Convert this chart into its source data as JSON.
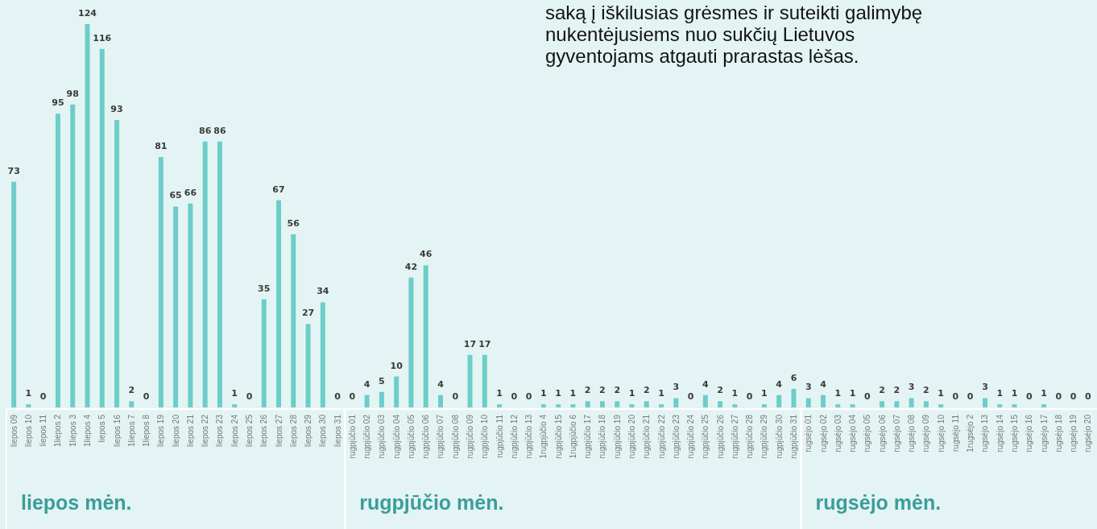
{
  "chart_data": {
    "type": "bar",
    "categories": [
      "liepos 09",
      "liepos 10",
      "liepos 11",
      "1liepos 2",
      "1liepos 3",
      "1liepos 4",
      "liepos 5",
      "liepos 16",
      "1liepos 7",
      "1liepos 8",
      "liepos 19",
      "liepos 20",
      "liepos 21",
      "liepos 22",
      "liepos 23",
      "liepos 24",
      "liepos 25",
      "liepos 26",
      "liepos 27",
      "liepos 28",
      "liepos 29",
      "liepos 30",
      "liepos 31",
      "rugpjūčio 01",
      "rugpjūčio 02",
      "rugpjūčio 03",
      "rugpjūčio 04",
      "rugpjūčio 05",
      "rugpjūčio 06",
      "rugpjūčio 07",
      "rugpjūčio 08",
      "rugpjūčio 09",
      "rugpjūčio 10",
      "rugpjūčio 11",
      "rugpjūčio 12",
      "rugpjūčio 13",
      "1rugpjūčio 4",
      "rugpjūčio 15",
      "1rugpjūčio 6",
      "rugpjūčio 17",
      "rugpjūčio 18",
      "rugpjūčio 19",
      "rugpjūčio 20",
      "rugpjūčio 21",
      "rugpjūčio 22",
      "rugpjūčio 23",
      "rugpjūčio 24",
      "rugpjūčio 25",
      "rugpjūčio 26",
      "rugpjūčio 27",
      "rugpjūčio 28",
      "rugpjūčio 29",
      "rugpjūčio 30",
      "rugpjūčio 31",
      "rugsėjo 01",
      "rugsėjo 02",
      "rugsėjo 03",
      "rugsėjo 04",
      "rugsėjo 05",
      "rugsėjo 06",
      "rugsėjo 07",
      "rugsėjo 08",
      "rugsėjo 09",
      "rugsėjo 10",
      "rugsėjo 11",
      "1rugsėjo 2",
      "rugsėjo 13",
      "rugsėjo 14",
      "rugsėjo 15",
      "rugsėjo 16",
      "rugsėjo 17",
      "rugsėjo 18",
      "rugsėjo 19",
      "rugsėjo 20"
    ],
    "values": [
      73,
      1,
      0,
      95,
      98,
      124,
      116,
      93,
      2,
      0,
      81,
      65,
      66,
      86,
      86,
      1,
      0,
      35,
      67,
      56,
      27,
      34,
      0,
      0,
      4,
      5,
      10,
      42,
      46,
      4,
      0,
      17,
      17,
      1,
      0,
      0,
      1,
      1,
      1,
      2,
      2,
      2,
      1,
      2,
      1,
      3,
      0,
      4,
      2,
      1,
      0,
      1,
      4,
      6,
      3,
      4,
      1,
      1,
      0,
      2,
      2,
      3,
      2,
      1,
      0,
      0,
      3,
      1,
      1,
      0,
      1,
      0,
      0,
      0
    ],
    "color": "#6dcdc8",
    "data_labels": true,
    "annotations": [
      "saką į iškilusias grėsmes ir suteikti galimybę nukentėjusiems nuo sukčių Lietuvos gyventojams atgauti prarastas lėšas.",
      "liepos mėn.",
      "rugpjūčio mėn.",
      "rugsėjo mėn."
    ]
  }
}
